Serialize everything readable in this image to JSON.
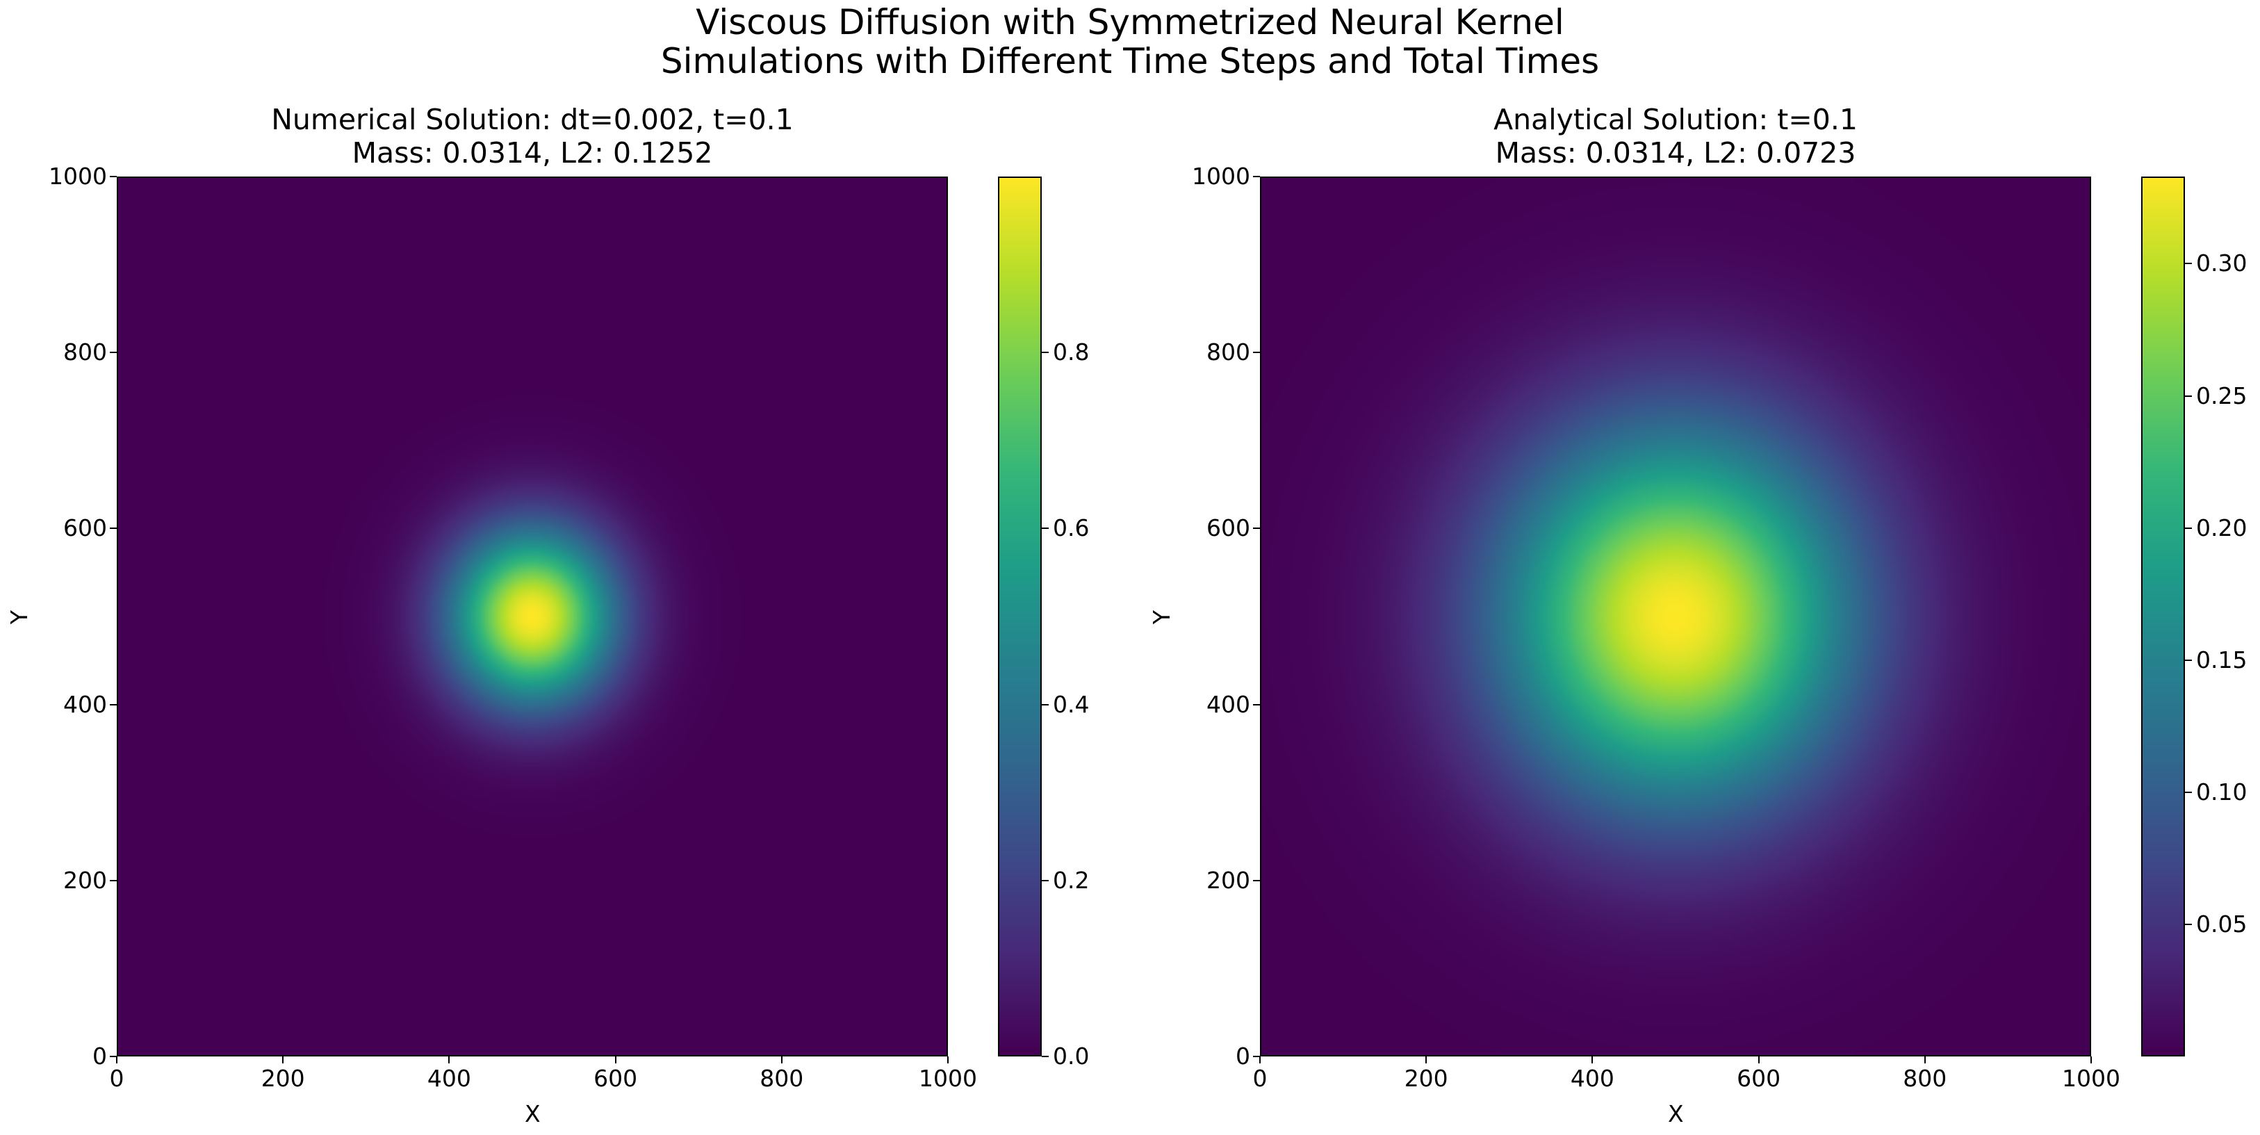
{
  "figure": {
    "title_line1": "Viscous Diffusion with Symmetrized Neural Kernel",
    "title_line2": "Simulations with Different Time Steps and Total Times"
  },
  "chart_data": [
    {
      "type": "heatmap",
      "title_line1": "Numerical Solution: dt=0.002, t=0.1",
      "title_line2": "Mass: 0.0314, L2: 0.1252",
      "xlabel": "X",
      "ylabel": "Y",
      "xlim": [
        0,
        1000
      ],
      "ylim": [
        0,
        1000
      ],
      "xticks": [
        0,
        200,
        400,
        600,
        800,
        1000
      ],
      "yticks": [
        0,
        200,
        400,
        600,
        800,
        1000
      ],
      "colormap": "viridis",
      "field": {
        "kind": "gaussian",
        "center": [
          500,
          500
        ],
        "peak": 1.0,
        "sigma": 70
      },
      "colorbar": {
        "min": 0.0,
        "max": 1.0,
        "ticks": [
          0.0,
          0.2,
          0.4,
          0.6,
          0.8
        ],
        "tick_labels": [
          "0.0",
          "0.2",
          "0.4",
          "0.6",
          "0.8"
        ]
      }
    },
    {
      "type": "heatmap",
      "title_line1": "Analytical Solution: t=0.1",
      "title_line2": "Mass: 0.0314, L2: 0.0723",
      "xlabel": "X",
      "ylabel": "Y",
      "xlim": [
        0,
        1000
      ],
      "ylim": [
        0,
        1000
      ],
      "xticks": [
        0,
        200,
        400,
        600,
        800,
        1000
      ],
      "yticks": [
        0,
        200,
        400,
        600,
        800,
        1000
      ],
      "colormap": "viridis",
      "field": {
        "kind": "gaussian",
        "center": [
          500,
          500
        ],
        "peak": 0.333,
        "sigma": 150
      },
      "colorbar": {
        "min": 0.0,
        "max": 0.333,
        "ticks": [
          0.05,
          0.1,
          0.15,
          0.2,
          0.25,
          0.3
        ],
        "tick_labels": [
          "0.05",
          "0.10",
          "0.15",
          "0.20",
          "0.25",
          "0.30"
        ]
      }
    }
  ]
}
